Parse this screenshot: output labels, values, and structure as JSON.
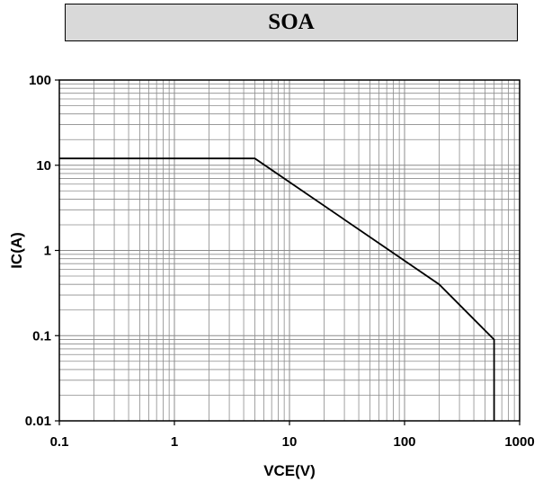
{
  "chart_data": {
    "type": "line",
    "title": "SOA",
    "xlabel": "VCE(V)",
    "ylabel": "IC(A)",
    "x_scale": "log",
    "y_scale": "log",
    "xlim": [
      0.1,
      1000
    ],
    "ylim": [
      0.01,
      100
    ],
    "grid": true,
    "x_ticks": [
      "0.1",
      "1",
      "10",
      "100",
      "1000"
    ],
    "y_ticks": [
      "0.01",
      "0.1",
      "1",
      "10",
      "100"
    ],
    "series": [
      {
        "x": [
          0.1,
          5,
          200,
          600,
          600
        ],
        "y": [
          12,
          12,
          0.4,
          0.09,
          0.01
        ]
      }
    ],
    "colors": {
      "line": "#000000",
      "grid": "#8c8c8c",
      "frame": "#000000",
      "title_bg": "#d9d9d9"
    }
  }
}
